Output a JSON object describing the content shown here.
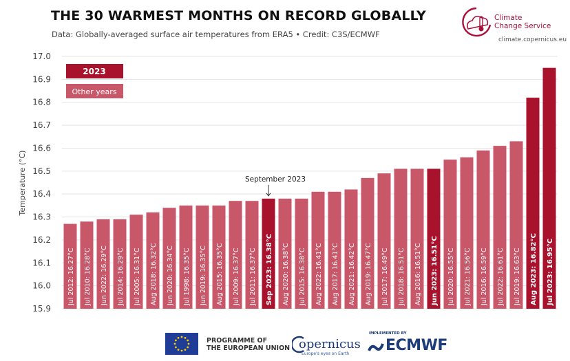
{
  "header": {
    "title": "THE 30 WARMEST MONTHS ON RECORD GLOBALLY",
    "subtitle": "Data: Globally-averaged surface air temperatures from ERA5 • Credit: C3S/ECMWF",
    "brand_name": "Climate\nChange Service",
    "brand_url": "climate.copernicus.eu"
  },
  "footer": {
    "eu_text": "PROGRAMME OF\nTHE EUROPEAN UNION",
    "copernicus_name": "opernicus",
    "copernicus_tagline": "Europe's eyes on Earth",
    "ecmwf_top": "IMPLEMENTED BY",
    "ecmwf_name": "ECMWF"
  },
  "colors": {
    "highlight": "#a8122d",
    "other": "#c9576a",
    "brand": "#a8103a"
  },
  "chart_data": {
    "type": "bar",
    "title": "THE 30 WARMEST MONTHS ON RECORD GLOBALLY",
    "ylabel": "Temperature (°C)",
    "ylim": [
      15.9,
      17.0
    ],
    "yticks": [
      15.9,
      16.0,
      16.1,
      16.2,
      16.3,
      16.4,
      16.5,
      16.6,
      16.7,
      16.8,
      16.9,
      17.0
    ],
    "legend": {
      "placement": "top-left",
      "entries": [
        {
          "label": "2023",
          "highlight": true
        },
        {
          "label": "Other years",
          "highlight": false
        }
      ]
    },
    "annotation": {
      "text": "September 2023",
      "category": "Sep 2023"
    },
    "grid": true,
    "bars": [
      {
        "category": "Jul 2012",
        "value": 16.27,
        "label": "Jul 2012: 16.27°C",
        "highlight": false
      },
      {
        "category": "Jul 2010",
        "value": 16.28,
        "label": "Jul 2010: 16.28°C",
        "highlight": false
      },
      {
        "category": "Jun 2022",
        "value": 16.29,
        "label": "Jun 2022: 16.29°C",
        "highlight": false
      },
      {
        "category": "Jul 2014",
        "value": 16.29,
        "label": "Jul 2014: 16.29°C",
        "highlight": false
      },
      {
        "category": "Jul 2005",
        "value": 16.31,
        "label": "Jul 2005: 16.31°C",
        "highlight": false
      },
      {
        "category": "Aug 2018",
        "value": 16.32,
        "label": "Aug 2018: 16.32°C",
        "highlight": false
      },
      {
        "category": "Jun 2020",
        "value": 16.34,
        "label": "Jun 2020: 16.34°C",
        "highlight": false
      },
      {
        "category": "Jul 1998",
        "value": 16.35,
        "label": "Jul 1998: 16.35°C",
        "highlight": false
      },
      {
        "category": "Jun 2019",
        "value": 16.35,
        "label": "Jun 2019: 16.35°C",
        "highlight": false
      },
      {
        "category": "Aug 2015",
        "value": 16.35,
        "label": "Aug 2015: 16.35°C",
        "highlight": false
      },
      {
        "category": "Jul 2009",
        "value": 16.37,
        "label": "Jul 2009: 16.37°C",
        "highlight": false
      },
      {
        "category": "Jul 2011",
        "value": 16.37,
        "label": "Jul 2011: 16.37°C",
        "highlight": false
      },
      {
        "category": "Sep 2023",
        "value": 16.38,
        "label": "Sep 2023: 16.38°C",
        "highlight": true
      },
      {
        "category": "Aug 2020",
        "value": 16.38,
        "label": "Aug 2020: 16.38°C",
        "highlight": false
      },
      {
        "category": "Jul 2015",
        "value": 16.38,
        "label": "Jul 2015: 16.38°C",
        "highlight": false
      },
      {
        "category": "Aug 2022",
        "value": 16.41,
        "label": "Aug 2022: 16.41°C",
        "highlight": false
      },
      {
        "category": "Aug 2017",
        "value": 16.41,
        "label": "Aug 2017: 16.41°C",
        "highlight": false
      },
      {
        "category": "Aug 2021",
        "value": 16.42,
        "label": "Aug 2021: 16.42°C",
        "highlight": false
      },
      {
        "category": "Aug 2019",
        "value": 16.47,
        "label": "Aug 2019: 16.47°C",
        "highlight": false
      },
      {
        "category": "Jul 2017",
        "value": 16.49,
        "label": "Jul 2017: 16.49°C",
        "highlight": false
      },
      {
        "category": "Jul 2018",
        "value": 16.51,
        "label": "Jul 2018: 16.51°C",
        "highlight": false
      },
      {
        "category": "Aug 2016",
        "value": 16.51,
        "label": "Aug 2016: 16.51°C",
        "highlight": false
      },
      {
        "category": "Jun 2023",
        "value": 16.51,
        "label": "Jun 2023: 16.51°C",
        "highlight": true
      },
      {
        "category": "Jul 2020",
        "value": 16.55,
        "label": "Jul 2020: 16.55°C",
        "highlight": false
      },
      {
        "category": "Jul 2021",
        "value": 16.56,
        "label": "Jul 2021: 16.56°C",
        "highlight": false
      },
      {
        "category": "Jul 2016",
        "value": 16.59,
        "label": "Jul 2016: 16.59°C",
        "highlight": false
      },
      {
        "category": "Jul 2022",
        "value": 16.61,
        "label": "Jul 2022: 16.61°C",
        "highlight": false
      },
      {
        "category": "Jul 2019",
        "value": 16.63,
        "label": "Jul 2019: 16.63°C",
        "highlight": false
      },
      {
        "category": "Aug 2023",
        "value": 16.82,
        "label": "Aug 2023: 16.82°C",
        "highlight": true
      },
      {
        "category": "Jul 2023",
        "value": 16.95,
        "label": "Jul 2023: 16.95°C",
        "highlight": true
      }
    ]
  }
}
